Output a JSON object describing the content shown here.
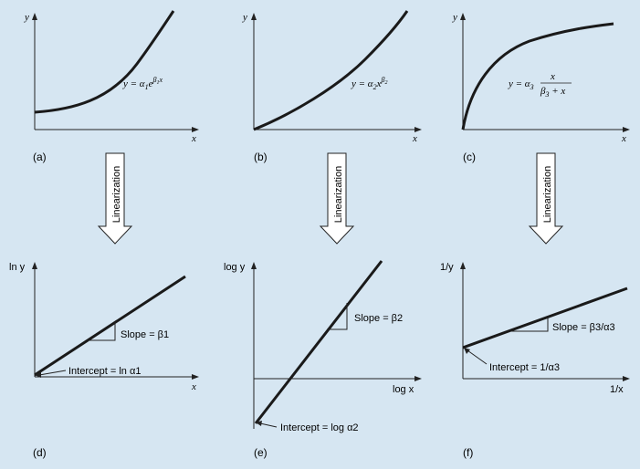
{
  "panels": {
    "a": {
      "label": "(a)",
      "y_axis": "y",
      "x_axis": "x"
    },
    "b": {
      "label": "(b)",
      "y_axis": "y",
      "x_axis": "x"
    },
    "c": {
      "label": "(c)",
      "y_axis": "y",
      "x_axis": "x"
    },
    "d": {
      "label": "(d)",
      "y_axis": "ln y",
      "x_axis": "x",
      "slope": "Slope = β1",
      "intercept": "Intercept = ln α1"
    },
    "e": {
      "label": "(e)",
      "y_axis": "log y",
      "x_axis": "log x",
      "slope": "Slope = β2",
      "intercept": "Intercept = log α2"
    },
    "f": {
      "label": "(f)",
      "y_axis": "1/y",
      "x_axis": "1/x",
      "slope": "Slope = β3/α3",
      "intercept": "Intercept = 1/α3"
    }
  },
  "equations": {
    "a": "y = α1e^(β1x)",
    "b": "y = α2x^(β2)",
    "c": "y = α3 x/(β3 + x)"
  },
  "arrows": [
    "Linearization",
    "Linearization",
    "Linearization"
  ],
  "colors": {
    "background": "#d6e6f2",
    "curve": "#1a1a1a",
    "arrow_fill": "#ffffff"
  }
}
